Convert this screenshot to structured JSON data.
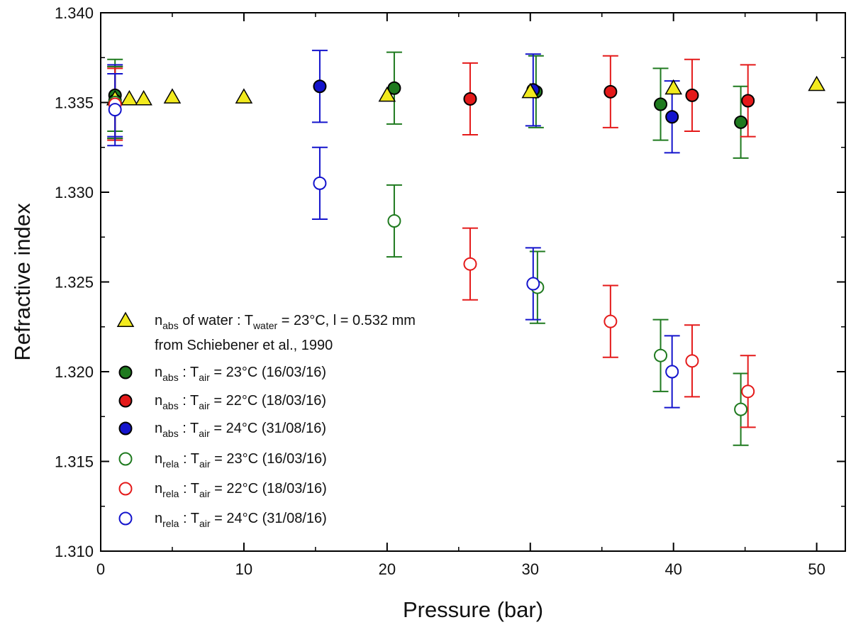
{
  "chart_data": {
    "type": "scatter",
    "title": "",
    "xlabel": "Pressure (bar)",
    "ylabel": "Refractive index",
    "xlim": [
      0,
      52
    ],
    "ylim": [
      1.31,
      1.34
    ],
    "xticks": [
      0,
      10,
      20,
      30,
      40,
      50
    ],
    "yticks": [
      1.31,
      1.315,
      1.32,
      1.325,
      1.33,
      1.335,
      1.34
    ],
    "xtick_labels": [
      "0",
      "10",
      "20",
      "30",
      "40",
      "50"
    ],
    "ytick_labels": [
      "1.310",
      "1.315",
      "1.320",
      "1.325",
      "1.330",
      "1.335",
      "1.340"
    ],
    "grid": false,
    "legend_position": "bottom-left",
    "series": [
      {
        "name": "nabs of water : Twater = 23°C, l = 0.532 mm from Schiebener et al., 1990",
        "marker": "triangle",
        "color": "#f2ea1e",
        "filled": true,
        "points": [
          {
            "x": 1,
            "y": 1.3352
          },
          {
            "x": 2,
            "y": 1.3352
          },
          {
            "x": 3,
            "y": 1.3352
          },
          {
            "x": 5,
            "y": 1.3353
          },
          {
            "x": 10,
            "y": 1.3353
          },
          {
            "x": 20,
            "y": 1.3354
          },
          {
            "x": 30,
            "y": 1.3356
          },
          {
            "x": 40,
            "y": 1.3358
          },
          {
            "x": 50,
            "y": 1.336
          }
        ]
      },
      {
        "name": "nabs : Tair = 23°C (16/03/16)",
        "marker": "circle",
        "color": "#1f7a1f",
        "filled": true,
        "points": [
          {
            "x": 1.0,
            "y": 1.3354,
            "err": 0.002
          },
          {
            "x": 20.5,
            "y": 1.3358,
            "err": 0.002
          },
          {
            "x": 30.4,
            "y": 1.3356,
            "err": 0.002
          },
          {
            "x": 39.1,
            "y": 1.3349,
            "err": 0.002
          },
          {
            "x": 44.7,
            "y": 1.3339,
            "err": 0.002
          }
        ]
      },
      {
        "name": "nabs : Tair = 22°C (18/03/16)",
        "marker": "circle",
        "color": "#e41a1a",
        "filled": true,
        "points": [
          {
            "x": 1.0,
            "y": 1.335,
            "err": 0.002
          },
          {
            "x": 25.8,
            "y": 1.3352,
            "err": 0.002
          },
          {
            "x": 35.6,
            "y": 1.3356,
            "err": 0.002
          },
          {
            "x": 41.3,
            "y": 1.3354,
            "err": 0.002
          },
          {
            "x": 45.2,
            "y": 1.3351,
            "err": 0.002
          }
        ]
      },
      {
        "name": "nabs : Tair = 24°C (31/08/16)",
        "marker": "circle",
        "color": "#1414cc",
        "filled": true,
        "points": [
          {
            "x": 1.0,
            "y": 1.3351,
            "err": 0.002
          },
          {
            "x": 15.3,
            "y": 1.3359,
            "err": 0.002
          },
          {
            "x": 30.2,
            "y": 1.3357,
            "err": 0.002
          },
          {
            "x": 39.9,
            "y": 1.3342,
            "err": 0.002
          }
        ]
      },
      {
        "name": "nrela : Tair = 23°C (16/03/16)",
        "marker": "circle",
        "color": "#1f7a1f",
        "filled": false,
        "points": [
          {
            "x": 1.0,
            "y": 1.335,
            "err": 0.002
          },
          {
            "x": 20.5,
            "y": 1.3284,
            "err": 0.002
          },
          {
            "x": 30.5,
            "y": 1.3247,
            "err": 0.002
          },
          {
            "x": 39.1,
            "y": 1.3209,
            "err": 0.002
          },
          {
            "x": 44.7,
            "y": 1.3179,
            "err": 0.002
          }
        ]
      },
      {
        "name": "nrela : Tair = 22°C (18/03/16)",
        "marker": "circle",
        "color": "#e41a1a",
        "filled": false,
        "points": [
          {
            "x": 1.0,
            "y": 1.3349,
            "err": 0.002
          },
          {
            "x": 25.8,
            "y": 1.326,
            "err": 0.002
          },
          {
            "x": 35.6,
            "y": 1.3228,
            "err": 0.002
          },
          {
            "x": 41.3,
            "y": 1.3206,
            "err": 0.002
          },
          {
            "x": 45.2,
            "y": 1.3189,
            "err": 0.002
          }
        ]
      },
      {
        "name": "nrela : Tair = 24°C (31/08/16)",
        "marker": "circle",
        "color": "#1414cc",
        "filled": false,
        "points": [
          {
            "x": 1.0,
            "y": 1.3346,
            "err": 0.002
          },
          {
            "x": 15.3,
            "y": 1.3305,
            "err": 0.002
          },
          {
            "x": 30.2,
            "y": 1.3249,
            "err": 0.002
          },
          {
            "x": 39.9,
            "y": 1.32,
            "err": 0.002
          }
        ]
      }
    ],
    "legend": [
      {
        "marker": "triangle",
        "color": "#f2ea1e",
        "filled": true,
        "parts": [
          [
            "n",
            "abs",
            " of water : T",
            "water",
            " = 23°C, l = 0.532 mm"
          ]
        ],
        "line2": "from Schiebener et al., 1990"
      },
      {
        "marker": "circle",
        "color": "#1f7a1f",
        "filled": true,
        "parts": [
          [
            "n",
            "abs",
            " : T",
            "air",
            " = 23°C (16/03/16)"
          ]
        ]
      },
      {
        "marker": "circle",
        "color": "#e41a1a",
        "filled": true,
        "parts": [
          [
            "n",
            "abs",
            " : T",
            "air",
            " = 22°C (18/03/16)"
          ]
        ]
      },
      {
        "marker": "circle",
        "color": "#1414cc",
        "filled": true,
        "parts": [
          [
            "n",
            "abs",
            " : T",
            "air",
            " = 24°C (31/08/16)"
          ]
        ]
      },
      {
        "marker": "circle",
        "color": "#1f7a1f",
        "filled": false,
        "parts": [
          [
            "n",
            "rela",
            " : T",
            "air",
            " = 23°C (16/03/16)"
          ]
        ]
      },
      {
        "marker": "circle",
        "color": "#e41a1a",
        "filled": false,
        "parts": [
          [
            "n",
            "rela",
            " : T",
            "air",
            " = 22°C (18/03/16)"
          ]
        ]
      },
      {
        "marker": "circle",
        "color": "#1414cc",
        "filled": false,
        "parts": [
          [
            "n",
            "rela",
            " : T",
            "air",
            " = 24°C (31/08/16)"
          ]
        ]
      }
    ]
  }
}
